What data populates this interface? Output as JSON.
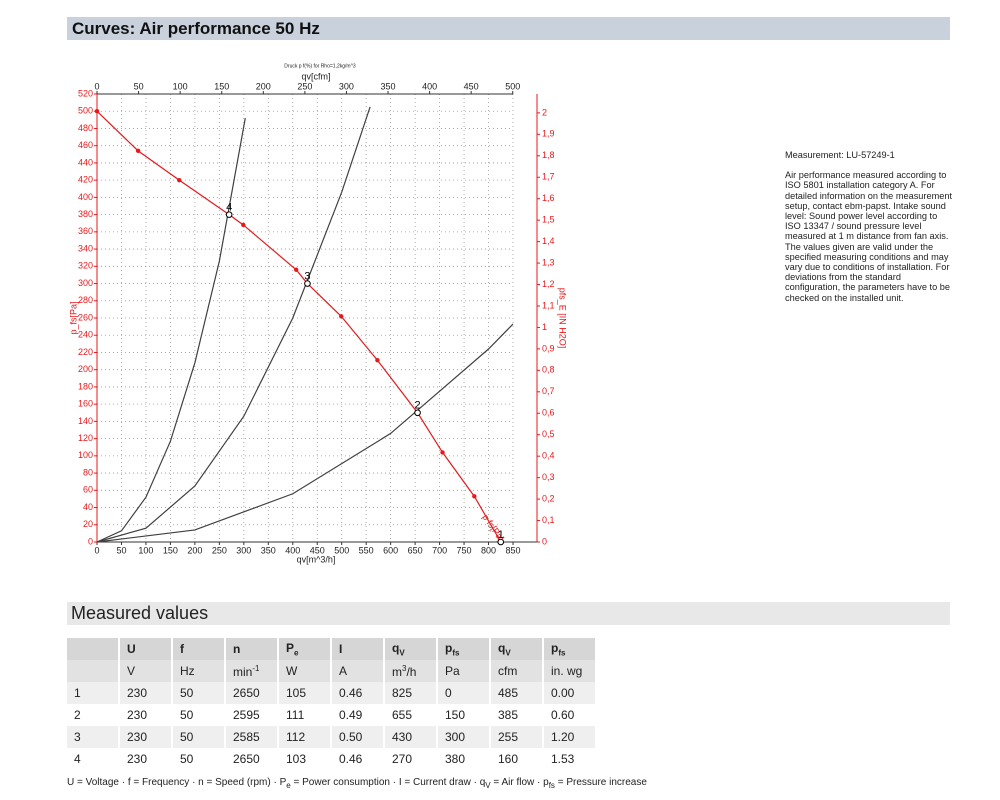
{
  "header": {
    "title": "Curves: Air performance 50 Hz"
  },
  "chart_data": {
    "type": "line",
    "title": "Druck p f(%) for Rho=1,2kg/m^3",
    "x_label": "qv[m^3/h]",
    "x2_label": "qv[cfm]",
    "y_label": "p_fs[Pa]",
    "y2_label": "pfs_E [IN H2O]",
    "xlim": [
      0,
      850
    ],
    "xticks": [
      0,
      50,
      100,
      150,
      200,
      250,
      300,
      350,
      400,
      450,
      500,
      550,
      600,
      650,
      700,
      750,
      800,
      850
    ],
    "x2lim": [
      0,
      500.3
    ],
    "x2ticks": [
      0,
      50,
      100,
      150,
      200,
      250,
      300,
      350,
      400,
      450,
      500
    ],
    "ylim": [
      0,
      520
    ],
    "yticks": [
      0,
      20,
      40,
      60,
      80,
      100,
      120,
      140,
      160,
      180,
      200,
      220,
      240,
      260,
      280,
      300,
      320,
      340,
      360,
      380,
      400,
      420,
      440,
      460,
      480,
      500,
      520
    ],
    "y2lim": [
      0,
      2.088
    ],
    "y2ticks": [
      0,
      {
        "value": 0.1,
        "label": "0,1"
      },
      {
        "value": 0.2,
        "label": "0,2"
      },
      {
        "value": 0.3,
        "label": "0,3"
      },
      {
        "value": 0.4,
        "label": "0,4"
      },
      {
        "value": 0.5,
        "label": "0,5"
      },
      {
        "value": 0.6,
        "label": "0,6"
      },
      {
        "value": 0.7,
        "label": "0,7"
      },
      {
        "value": 0.8,
        "label": "0,8"
      },
      {
        "value": 0.9,
        "label": "0,9"
      },
      1,
      {
        "value": 1.1,
        "label": "1,1"
      },
      {
        "value": 1.2,
        "label": "1,2"
      },
      {
        "value": 1.3,
        "label": "1,3"
      },
      {
        "value": 1.4,
        "label": "1,4"
      },
      {
        "value": 1.5,
        "label": "1,5"
      },
      {
        "value": 1.6,
        "label": "1,6"
      },
      {
        "value": 1.7,
        "label": "1,7"
      },
      {
        "value": 1.8,
        "label": "1,8"
      },
      {
        "value": 1.9,
        "label": "1,9"
      },
      2
    ],
    "grid": true,
    "series": [
      {
        "name": "p fs[Pa]",
        "color": "#e8191c",
        "markers": true,
        "x": [
          0,
          84,
          168,
          270,
          299,
          407,
          430,
          499,
          573,
          655,
          706,
          771,
          825
        ],
        "values": [
          500,
          454,
          420,
          380,
          368,
          316,
          300,
          262,
          211,
          150,
          104,
          53,
          0
        ]
      },
      {
        "color": "#404040",
        "x": [
          0,
          50,
          100,
          150,
          200,
          250,
          303
        ],
        "values": [
          0,
          13,
          52,
          117,
          208,
          326,
          492
        ]
      },
      {
        "color": "#404040",
        "x": [
          0,
          100,
          200,
          300,
          400,
          500,
          558
        ],
        "values": [
          0,
          16,
          65,
          146,
          260,
          406,
          505
        ]
      },
      {
        "color": "#404040",
        "x": [
          0,
          200,
          400,
          600,
          800,
          850
        ],
        "values": [
          0,
          14,
          56,
          126,
          224,
          253
        ]
      }
    ],
    "annotations": [
      {
        "text": "1",
        "x": 825,
        "y": 0
      },
      {
        "text": "2",
        "x": 655,
        "y": 150
      },
      {
        "text": "3",
        "x": 430,
        "y": 300
      },
      {
        "text": "4",
        "x": 270,
        "y": 380
      }
    ]
  },
  "notes": {
    "measurement": "Measurement: LU-57249-1",
    "text": "Air performance measured according to ISO 5801 installation category A. For detailed information on the measurement setup, contact ebm-papst. Intake sound level: Sound power level according to ISO 13347 / sound pressure level measured at 1 m distance from fan axis. The values given are valid under the specified measuring conditions and may vary due to conditions of installation. For deviations from the standard configuration, the parameters have to be checked on the installed unit."
  },
  "table": {
    "title": "Measured values",
    "header": [
      {
        "main": ""
      },
      {
        "main": "U"
      },
      {
        "main": "f"
      },
      {
        "main": "n"
      },
      {
        "main": "P",
        "sub": "e"
      },
      {
        "main": "I"
      },
      {
        "main": "q",
        "sub": "V"
      },
      {
        "main": "p",
        "sub": "fs"
      },
      {
        "main": "q",
        "sub": "V"
      },
      {
        "main": "p",
        "sub": "fs"
      }
    ],
    "units": [
      {
        "main": ""
      },
      {
        "main": "V"
      },
      {
        "main": "Hz"
      },
      {
        "main": "min",
        "sup": "-1"
      },
      {
        "main": "W"
      },
      {
        "main": "A"
      },
      {
        "main": "m",
        "sup": "3",
        "rest": "/h"
      },
      {
        "main": "Pa"
      },
      {
        "main": "cfm"
      },
      {
        "main": "in. wg"
      }
    ],
    "rows": [
      [
        "1",
        "230",
        "50",
        "2650",
        "105",
        "0.46",
        "825",
        "0",
        "485",
        "0.00"
      ],
      [
        "2",
        "230",
        "50",
        "2595",
        "111",
        "0.49",
        "655",
        "150",
        "385",
        "0.60"
      ],
      [
        "3",
        "230",
        "50",
        "2585",
        "112",
        "0.50",
        "430",
        "300",
        "255",
        "1.20"
      ],
      [
        "4",
        "230",
        "50",
        "2650",
        "103",
        "0.46",
        "270",
        "380",
        "160",
        "1.53"
      ]
    ],
    "footnote": [
      "U = Voltage · f = Frequency · n = Speed (rpm) · P",
      "e",
      " = Power consumption · I = Current draw · q",
      "V",
      " = Air flow · p",
      "fs",
      " = Pressure increase"
    ]
  }
}
